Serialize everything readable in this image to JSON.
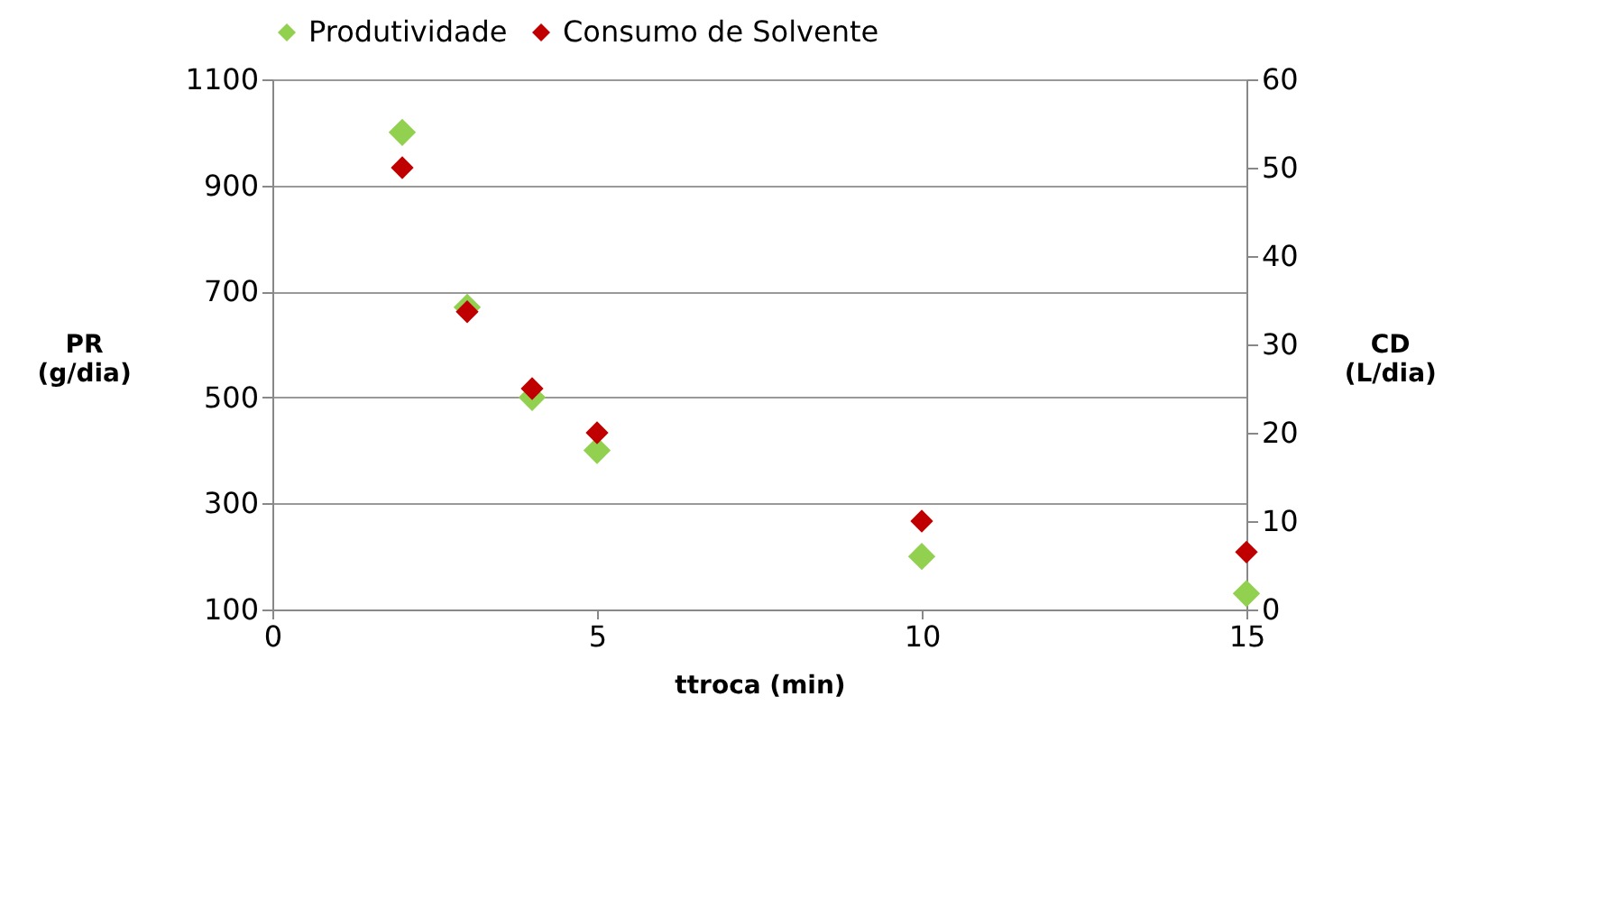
{
  "chart_data": {
    "type": "scatter",
    "xlabel": "ttroca (min)",
    "ylabel": "PR (g/dia)",
    "y2label": "CD (L/dia)",
    "x": [
      2,
      3,
      4,
      5,
      10,
      15
    ],
    "series": [
      {
        "name": "Produtividade",
        "color": "#92d050",
        "values": [
          1000,
          670,
          500,
          400,
          200,
          130
        ]
      },
      {
        "name": "Consumo de Solvente",
        "color": "#c00000",
        "axis": "y2",
        "values": [
          50,
          33.7,
          25,
          20,
          10,
          6.5
        ]
      }
    ],
    "xlim": [
      0,
      15
    ],
    "xticks": [
      0,
      5,
      10,
      15
    ],
    "ylim": [
      100,
      1100
    ],
    "yticks": [
      100,
      300,
      500,
      700,
      900,
      1100
    ],
    "y2lim": [
      0,
      60
    ],
    "y2ticks": [
      0,
      10,
      20,
      30,
      40,
      50,
      60
    ],
    "grid": "y",
    "legend": "top",
    "marker": "diamond"
  }
}
